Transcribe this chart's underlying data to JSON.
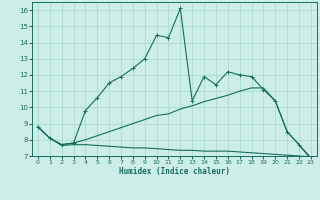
{
  "title": "",
  "xlabel": "Humidex (Indice chaleur)",
  "bg_color": "#cceee8",
  "grid_color": "#aaddcc",
  "line_color": "#1a6b5e",
  "xlim": [
    -0.5,
    23.5
  ],
  "ylim": [
    7,
    16.5
  ],
  "xticks": [
    0,
    1,
    2,
    3,
    4,
    5,
    6,
    7,
    8,
    9,
    10,
    11,
    12,
    13,
    14,
    15,
    16,
    17,
    18,
    19,
    20,
    21,
    22,
    23
  ],
  "yticks": [
    7,
    8,
    9,
    10,
    11,
    12,
    13,
    14,
    15,
    16
  ],
  "line1_x": [
    0,
    1,
    2,
    3,
    4,
    5,
    6,
    7,
    8,
    9,
    10,
    11,
    12,
    13,
    14,
    15,
    16,
    17,
    18,
    19,
    20,
    21,
    22,
    23
  ],
  "line1_y": [
    8.8,
    8.1,
    7.65,
    7.7,
    7.7,
    7.65,
    7.6,
    7.55,
    7.5,
    7.5,
    7.45,
    7.4,
    7.35,
    7.35,
    7.3,
    7.3,
    7.3,
    7.25,
    7.2,
    7.15,
    7.1,
    7.05,
    7.0,
    6.95
  ],
  "line2_x": [
    0,
    1,
    2,
    3,
    4,
    5,
    6,
    7,
    8,
    9,
    10,
    11,
    12,
    13,
    14,
    15,
    16,
    17,
    18,
    19,
    20,
    21,
    22,
    23
  ],
  "line2_y": [
    8.8,
    8.1,
    7.7,
    7.8,
    8.0,
    8.25,
    8.5,
    8.75,
    9.0,
    9.25,
    9.5,
    9.6,
    9.9,
    10.1,
    10.35,
    10.55,
    10.75,
    11.0,
    11.2,
    11.2,
    10.4,
    8.5,
    7.7,
    6.9
  ],
  "line3_x": [
    0,
    1,
    2,
    3,
    4,
    5,
    6,
    7,
    8,
    9,
    10,
    11,
    12,
    13,
    14,
    15,
    16,
    17,
    18,
    19,
    20,
    21,
    22,
    23
  ],
  "line3_y": [
    8.8,
    8.1,
    7.7,
    7.8,
    9.8,
    10.6,
    11.5,
    11.9,
    12.4,
    13.0,
    14.45,
    14.3,
    16.1,
    10.4,
    11.9,
    11.4,
    12.2,
    12.0,
    11.9,
    11.1,
    10.4,
    8.5,
    7.7,
    6.8
  ]
}
